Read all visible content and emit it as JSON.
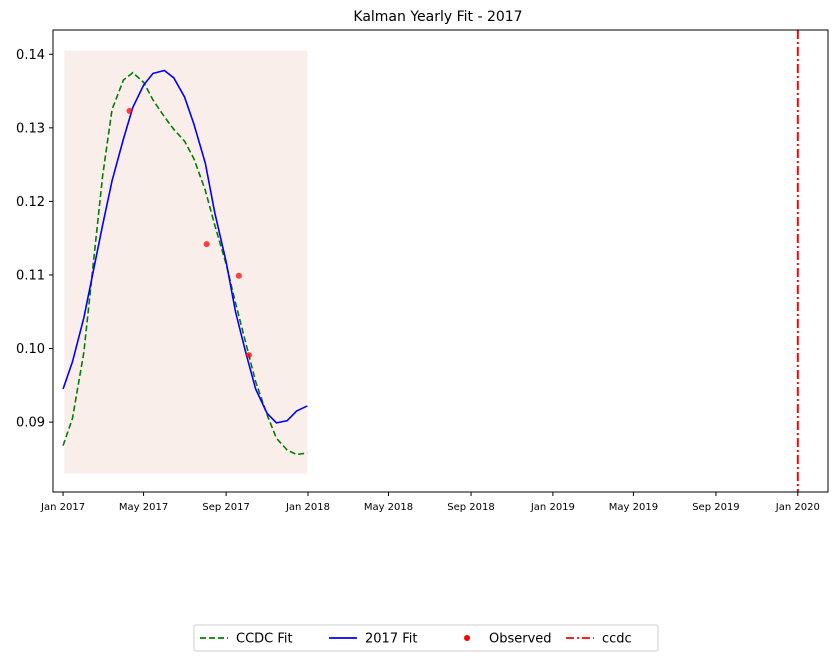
{
  "chart_data": {
    "type": "line",
    "title": "Kalman Yearly Fit - 2017",
    "xlabel": "",
    "ylabel": "",
    "x_range": [
      "2016-12-17",
      "2020-02-15"
    ],
    "ylim": [
      0.0805,
      0.1433
    ],
    "grid": false,
    "legend_position": "bottom-center",
    "x_tick_labels": [
      {
        "date": "2017-01-01",
        "label": "Jan 2017"
      },
      {
        "date": "2017-05-01",
        "label": "May 2017"
      },
      {
        "date": "2017-09-01",
        "label": "Sep 2017"
      },
      {
        "date": "2018-01-01",
        "label": "Jan 2018"
      },
      {
        "date": "2018-05-01",
        "label": "May 2018"
      },
      {
        "date": "2018-09-01",
        "label": "Sep 2018"
      },
      {
        "date": "2019-01-01",
        "label": "Jan 2019"
      },
      {
        "date": "2019-05-01",
        "label": "May 2019"
      },
      {
        "date": "2019-09-01",
        "label": "Sep 2019"
      },
      {
        "date": "2020-01-01",
        "label": "Jan 2020"
      }
    ],
    "y_ticks": [
      0.09,
      0.1,
      0.11,
      0.12,
      0.13,
      0.14
    ],
    "y_tick_labels": [
      "0.09",
      "0.10",
      "0.11",
      "0.12",
      "0.13",
      "0.14"
    ],
    "shaded_region": {
      "x_start": "2017-01-03",
      "x_end": "2017-12-31",
      "y_start": 0.083,
      "y_end": 0.1405,
      "color": "#f5d9d0"
    },
    "series": [
      {
        "name": "CCDC Fit",
        "style": "dashed",
        "color": "#008000",
        "points": [
          [
            "2017-01-01",
            0.0868
          ],
          [
            "2017-01-15",
            0.0905
          ],
          [
            "2017-02-01",
            0.0995
          ],
          [
            "2017-02-15",
            0.1115
          ],
          [
            "2017-03-01",
            0.1235
          ],
          [
            "2017-03-15",
            0.1325
          ],
          [
            "2017-04-01",
            0.1365
          ],
          [
            "2017-04-15",
            0.1375
          ],
          [
            "2017-05-01",
            0.1362
          ],
          [
            "2017-05-15",
            0.1338
          ],
          [
            "2017-06-01",
            0.1315
          ],
          [
            "2017-06-15",
            0.1298
          ],
          [
            "2017-07-01",
            0.1282
          ],
          [
            "2017-07-15",
            0.1258
          ],
          [
            "2017-08-01",
            0.1215
          ],
          [
            "2017-08-15",
            0.1168
          ],
          [
            "2017-09-01",
            0.1115
          ],
          [
            "2017-09-15",
            0.1062
          ],
          [
            "2017-10-01",
            0.1005
          ],
          [
            "2017-10-15",
            0.0955
          ],
          [
            "2017-11-01",
            0.091
          ],
          [
            "2017-11-15",
            0.0878
          ],
          [
            "2017-12-01",
            0.0862
          ],
          [
            "2017-12-15",
            0.0856
          ],
          [
            "2017-12-31",
            0.0858
          ]
        ]
      },
      {
        "name": "2017 Fit",
        "style": "solid",
        "color": "#0000ff",
        "points": [
          [
            "2017-01-01",
            0.0945
          ],
          [
            "2017-01-15",
            0.0982
          ],
          [
            "2017-02-01",
            0.1042
          ],
          [
            "2017-02-15",
            0.1105
          ],
          [
            "2017-03-01",
            0.1168
          ],
          [
            "2017-03-15",
            0.1228
          ],
          [
            "2017-04-01",
            0.1285
          ],
          [
            "2017-04-15",
            0.1328
          ],
          [
            "2017-05-01",
            0.1358
          ],
          [
            "2017-05-15",
            0.1374
          ],
          [
            "2017-06-01",
            0.1378
          ],
          [
            "2017-06-15",
            0.1368
          ],
          [
            "2017-07-01",
            0.1342
          ],
          [
            "2017-07-15",
            0.1305
          ],
          [
            "2017-08-01",
            0.1252
          ],
          [
            "2017-08-15",
            0.1185
          ],
          [
            "2017-09-01",
            0.1118
          ],
          [
            "2017-09-15",
            0.105
          ],
          [
            "2017-10-01",
            0.0992
          ],
          [
            "2017-10-15",
            0.0945
          ],
          [
            "2017-11-01",
            0.0912
          ],
          [
            "2017-11-15",
            0.0899
          ],
          [
            "2017-12-01",
            0.0902
          ],
          [
            "2017-12-15",
            0.0915
          ],
          [
            "2017-12-31",
            0.0922
          ]
        ]
      },
      {
        "name": "Observed",
        "style": "markers",
        "color": "#ff0000",
        "points": [
          [
            "2017-04-10",
            0.1323
          ],
          [
            "2017-08-03",
            0.1142
          ],
          [
            "2017-09-20",
            0.1099
          ],
          [
            "2017-10-05",
            0.0991
          ]
        ]
      },
      {
        "name": "ccdc",
        "style": "dashdot-vertical",
        "color": "#ff0000",
        "x": "2020-01-01"
      }
    ],
    "legend": [
      "CCDC Fit",
      "2017 Fit",
      "Observed",
      "ccdc"
    ]
  }
}
